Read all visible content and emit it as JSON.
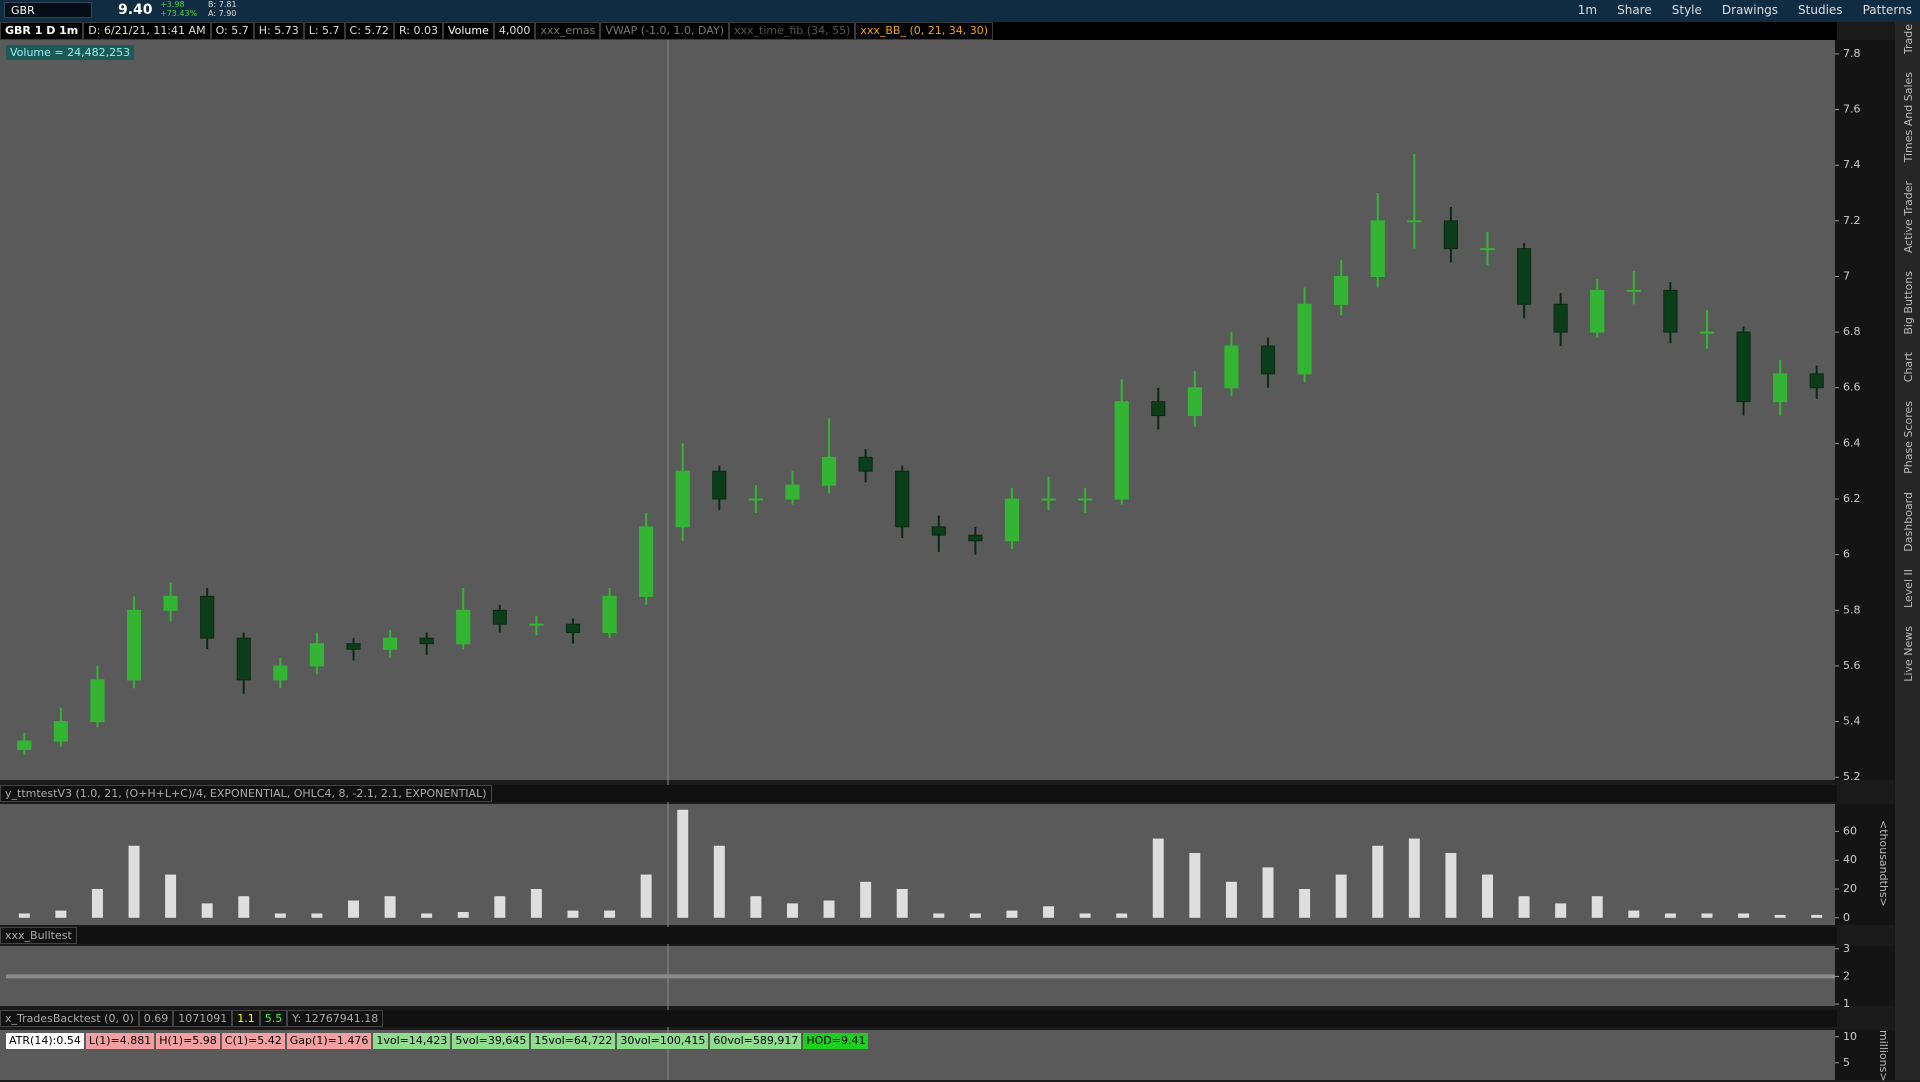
{
  "toolbar": {
    "symbol": "GBR",
    "last": "9.40",
    "change": "+3.98",
    "change_pct": "+73.43%",
    "bid": "B: 7.81",
    "ask": "A: 7.90",
    "timeframe": "1m",
    "buttons": [
      "Share",
      "Style",
      "Drawings",
      "Studies",
      "Patterns"
    ]
  },
  "info_bar": [
    "GBR 1 D 1m",
    "D: 6/21/21, 11:41 AM",
    "O: 5.7",
    "H: 5.73",
    "L: 5.7",
    "C: 5.72",
    "R: 0.03",
    "Volume",
    "4,000",
    "xxx_emas",
    "VWAP (-1.0, 1.0, DAY)",
    "xxx_time_fib (34, 55)",
    "xxx_BB_ (0, 21, 34, 30)"
  ],
  "volume_label": "Volume = 24,482,253",
  "right_tabs": [
    "Trade",
    "Times And Sales",
    "Active Trader",
    "Big Buttons",
    "Chart",
    "Phase Scores",
    "Dashboard",
    "Level II",
    "Live News"
  ],
  "chart_data": [
    {
      "type": "candlestick",
      "up_color": "#33b533",
      "down_color": "#0c3d1a",
      "open": [
        5.3,
        5.33,
        5.4,
        5.55,
        5.8,
        5.85,
        5.7,
        5.55,
        5.6,
        5.68,
        5.66,
        5.7,
        5.68,
        5.8,
        5.75,
        5.75,
        5.72,
        5.85,
        6.1,
        6.3,
        6.2,
        6.2,
        6.25,
        6.35,
        6.3,
        6.1,
        6.07,
        6.05,
        6.2,
        6.2,
        6.2,
        6.55,
        6.5,
        6.6,
        6.75,
        6.65,
        6.9,
        7.0,
        7.2,
        7.2,
        7.1,
        7.1,
        6.9,
        6.8,
        6.95,
        6.95,
        6.8,
        6.8,
        6.55,
        6.65
      ],
      "high": [
        5.36,
        5.45,
        5.6,
        5.85,
        5.9,
        5.88,
        5.72,
        5.63,
        5.72,
        5.7,
        5.73,
        5.72,
        5.88,
        5.82,
        5.78,
        5.77,
        5.88,
        6.15,
        6.4,
        6.32,
        6.25,
        6.3,
        6.49,
        6.38,
        6.32,
        6.14,
        6.1,
        6.24,
        6.28,
        6.24,
        6.63,
        6.6,
        6.66,
        6.8,
        6.78,
        6.96,
        7.06,
        7.3,
        7.44,
        7.25,
        7.16,
        7.12,
        6.94,
        6.99,
        7.02,
        6.98,
        6.88,
        6.82,
        6.7,
        6.68
      ],
      "low": [
        5.28,
        5.31,
        5.38,
        5.52,
        5.76,
        5.66,
        5.5,
        5.52,
        5.57,
        5.62,
        5.63,
        5.64,
        5.66,
        5.72,
        5.71,
        5.68,
        5.7,
        5.82,
        6.05,
        6.16,
        6.15,
        6.18,
        6.22,
        6.26,
        6.06,
        6.01,
        6.0,
        6.02,
        6.16,
        6.15,
        6.18,
        6.45,
        6.46,
        6.57,
        6.6,
        6.62,
        6.86,
        6.96,
        7.1,
        7.05,
        7.04,
        6.85,
        6.75,
        6.78,
        6.9,
        6.76,
        6.74,
        6.5,
        6.5,
        6.56
      ],
      "close": [
        5.33,
        5.4,
        5.55,
        5.8,
        5.85,
        5.7,
        5.55,
        5.6,
        5.68,
        5.66,
        5.7,
        5.68,
        5.8,
        5.75,
        5.75,
        5.72,
        5.85,
        6.1,
        6.3,
        6.2,
        6.2,
        6.25,
        6.35,
        6.3,
        6.1,
        6.07,
        6.05,
        6.2,
        6.2,
        6.2,
        6.55,
        6.5,
        6.6,
        6.75,
        6.65,
        6.9,
        7.0,
        7.2,
        7.2,
        7.1,
        7.1,
        6.9,
        6.8,
        6.95,
        6.95,
        6.8,
        6.8,
        6.55,
        6.65,
        6.6
      ],
      "ylim": [
        5.19,
        7.85
      ],
      "yticks": [
        5.2,
        5.4,
        5.6,
        5.8,
        6,
        6.2,
        6.4,
        6.6,
        6.8,
        7,
        7.2,
        7.4,
        7.6,
        7.8
      ]
    },
    {
      "type": "bar",
      "title": "y_ttmtestV3 (1.0, 21, (O+H+L+C)/4, EXPONENTIAL, OHLC4, 8, -2.1, 2.1, EXPONENTIAL)",
      "color": "#dedede",
      "axis_label": "<thousandths>",
      "values": [
        3,
        5,
        20,
        50,
        30,
        10,
        15,
        3,
        3,
        12,
        15,
        3,
        4,
        15,
        20,
        5,
        5,
        30,
        75,
        50,
        15,
        10,
        12,
        25,
        20,
        3,
        3,
        5,
        8,
        3,
        3,
        55,
        45,
        25,
        35,
        20,
        30,
        50,
        55,
        45,
        30,
        15,
        10,
        15,
        5,
        3,
        3,
        3,
        2,
        2
      ],
      "ylim": [
        -5,
        79
      ],
      "yticks": [
        0,
        20,
        40,
        60
      ]
    }
  ],
  "bulltest": {
    "title": "xxx_Bulltest",
    "ylim": [
      0.93,
      3.1
    ],
    "yticks": [
      1,
      2,
      3
    ]
  },
  "backtest": {
    "header": [
      "x_TradesBacktest (0, 0)",
      "0.69",
      "1071091",
      "1.1",
      "5.5",
      "Y: 12767941.18"
    ],
    "axis_label": "millions>",
    "ylim": [
      1.7,
      11.3
    ],
    "yticks": [
      5,
      10
    ],
    "stats": [
      "ATR(14):0.54",
      "L(1)=4.881",
      "H(1)=5.98",
      "C(1)=5.42",
      "Gap(1)=1.476",
      "1vol=14,423",
      "5vol=39,645",
      "15vol=64,722",
      "30vol=100,415",
      "60vol=589,917",
      "HOD=9.41"
    ]
  }
}
